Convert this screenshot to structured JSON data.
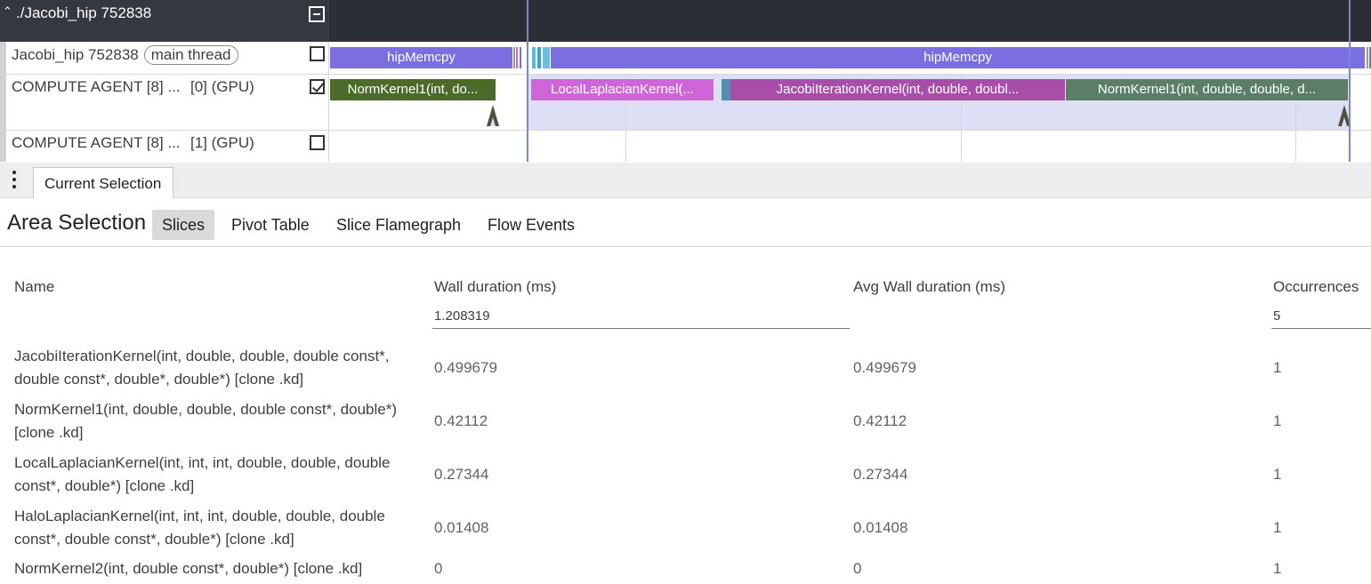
{
  "timeline": {
    "process_title": "./Jacobi_hip 752838",
    "tracks": [
      {
        "name": "Jacobi_hip 752838",
        "chip": "main thread",
        "checked": false
      },
      {
        "name": "COMPUTE AGENT [8] ...",
        "suffix": "[0] (GPU)",
        "checked": true
      },
      {
        "name": "COMPUTE AGENT [8] ...",
        "suffix": "[1] (GPU)",
        "checked": false
      }
    ],
    "slices": {
      "main_left": "hipMemcpy",
      "main_right": "hipMemcpy",
      "gpu_norm1_left": "NormKernel1(int, do...",
      "gpu_local_laplacian": "LocalLaplacianKernel(...",
      "gpu_jacobi": "JacobiIterationKernel(int, double, doubl...",
      "gpu_norm1_right": "NormKernel1(int, double, double, d..."
    },
    "colors": {
      "hipMemcpy": "#7b6ee0",
      "norm_left": "#4a6b2a",
      "local_laplacian": "#cf66d8",
      "jacobi": "#a64ea8",
      "norm_right": "#5b7f66",
      "selection": "#dde0f5",
      "selection_line": "#7986cb"
    }
  },
  "details": {
    "tab_label": "Current Selection",
    "title": "Area Selection",
    "subtabs": [
      "Slices",
      "Pivot Table",
      "Slice Flamegraph",
      "Flow Events"
    ],
    "active_subtab": "Slices",
    "columns": [
      "Name",
      "Wall duration (ms)",
      "Avg Wall duration (ms)",
      "Occurrences"
    ],
    "totals": {
      "wall": "1.208319",
      "occurrences": "5"
    },
    "rows": [
      {
        "name": "JacobiIterationKernel(int, double, double, double const*, double const*, double*, double*) [clone .kd]",
        "wall": "0.499679",
        "avg": "0.499679",
        "occ": "1"
      },
      {
        "name": "NormKernel1(int, double, double, double const*, double*) [clone .kd]",
        "wall": "0.42112",
        "avg": "0.42112",
        "occ": "1"
      },
      {
        "name": "LocalLaplacianKernel(int, int, int, double, double, double const*, double*) [clone .kd]",
        "wall": "0.27344",
        "avg": "0.27344",
        "occ": "1"
      },
      {
        "name": "HaloLaplacianKernel(int, int, int, double, double, double const*, double const*, double*) [clone .kd]",
        "wall": "0.01408",
        "avg": "0.01408",
        "occ": "1"
      },
      {
        "name": "NormKernel2(int, double const*, double*) [clone .kd]",
        "wall": "0",
        "avg": "0",
        "occ": "1"
      }
    ]
  }
}
